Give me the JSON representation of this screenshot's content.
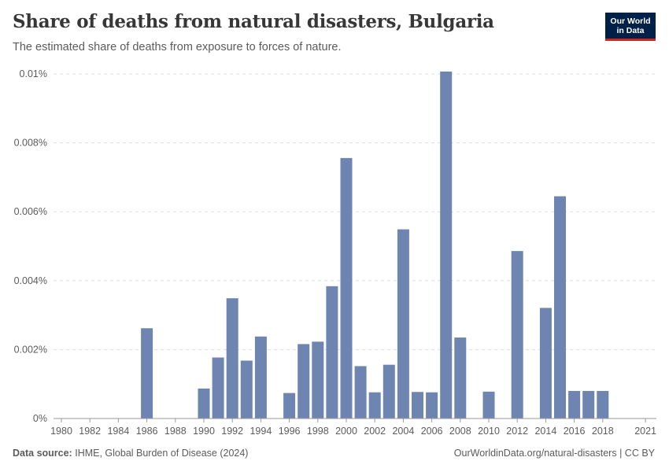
{
  "header": {
    "title": "Share of deaths from natural disasters, Bulgaria",
    "subtitle": "The estimated share of deaths from exposure to forces of nature."
  },
  "logo": {
    "line1": "Our World",
    "line2": "in Data"
  },
  "footer": {
    "source_label": "Data source:",
    "source_text": "IHME, Global Burden of Disease (2024)",
    "right_text": "OurWorldinData.org/natural-disasters | CC BY"
  },
  "colors": {
    "bar": "#6d85b0",
    "grid": "#dddddd",
    "axis": "#999999"
  },
  "chart_data": {
    "type": "bar",
    "title": "Share of deaths from natural disasters, Bulgaria",
    "xlabel": "",
    "ylabel": "",
    "ylim": [
      0,
      0.01
    ],
    "xlim": [
      1980,
      2021
    ],
    "y_ticks": [
      0,
      0.002,
      0.004,
      0.006,
      0.008,
      0.01
    ],
    "y_tick_labels": [
      "0%",
      "0.002%",
      "0.004%",
      "0.006%",
      "0.008%",
      "0.01%"
    ],
    "x_ticks": [
      1980,
      1982,
      1984,
      1986,
      1988,
      1990,
      1992,
      1994,
      1996,
      1998,
      2000,
      2002,
      2004,
      2006,
      2008,
      2010,
      2012,
      2014,
      2016,
      2018,
      2021
    ],
    "years": [
      1986,
      1990,
      1991,
      1992,
      1993,
      1994,
      1996,
      1997,
      1998,
      1999,
      2000,
      2001,
      2002,
      2003,
      2004,
      2005,
      2006,
      2007,
      2008,
      2010,
      2012,
      2014,
      2015,
      2016,
      2017,
      2018
    ],
    "values": [
      0.00262,
      0.00087,
      0.00177,
      0.00349,
      0.00168,
      0.00238,
      0.00074,
      0.00216,
      0.00223,
      0.00384,
      0.00756,
      0.00152,
      0.00076,
      0.00156,
      0.00549,
      0.00077,
      0.00076,
      0.01007,
      0.00235,
      0.00078,
      0.00486,
      0.00321,
      0.00645,
      0.0008,
      0.0008,
      0.0008
    ],
    "legend": "none"
  }
}
